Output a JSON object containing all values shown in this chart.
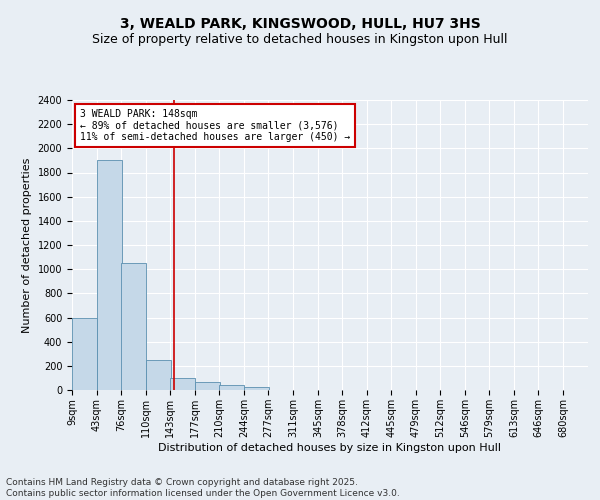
{
  "title": "3, WEALD PARK, KINGSWOOD, HULL, HU7 3HS",
  "subtitle": "Size of property relative to detached houses in Kingston upon Hull",
  "xlabel": "Distribution of detached houses by size in Kingston upon Hull",
  "ylabel": "Number of detached properties",
  "footnote1": "Contains HM Land Registry data © Crown copyright and database right 2025.",
  "footnote2": "Contains public sector information licensed under the Open Government Licence v3.0.",
  "bin_labels": [
    "9sqm",
    "43sqm",
    "76sqm",
    "110sqm",
    "143sqm",
    "177sqm",
    "210sqm",
    "244sqm",
    "277sqm",
    "311sqm",
    "345sqm",
    "378sqm",
    "412sqm",
    "445sqm",
    "479sqm",
    "512sqm",
    "546sqm",
    "579sqm",
    "613sqm",
    "646sqm",
    "680sqm"
  ],
  "bin_edges": [
    9,
    43,
    76,
    110,
    143,
    177,
    210,
    244,
    277,
    311,
    345,
    378,
    412,
    445,
    479,
    512,
    546,
    579,
    613,
    646,
    680
  ],
  "bar_values": [
    600,
    1900,
    1050,
    250,
    100,
    65,
    40,
    25,
    0,
    0,
    0,
    0,
    0,
    0,
    0,
    0,
    0,
    0,
    0,
    0
  ],
  "bar_color": "#c5d8e8",
  "bar_edge_color": "#5a8fb0",
  "background_color": "#e8eef4",
  "grid_color": "#ffffff",
  "red_line_x": 148,
  "annotation_title": "3 WEALD PARK: 148sqm",
  "annotation_line1": "← 89% of detached houses are smaller (3,576)",
  "annotation_line2": "11% of semi-detached houses are larger (450) →",
  "annotation_box_color": "#ffffff",
  "annotation_box_edge": "#cc0000",
  "annotation_text_color": "#000000",
  "red_line_color": "#cc0000",
  "ylim": [
    0,
    2400
  ],
  "yticks": [
    0,
    200,
    400,
    600,
    800,
    1000,
    1200,
    1400,
    1600,
    1800,
    2000,
    2200,
    2400
  ],
  "title_fontsize": 10,
  "subtitle_fontsize": 9,
  "axis_label_fontsize": 8,
  "tick_fontsize": 7,
  "annotation_fontsize": 7,
  "footnote_fontsize": 6.5
}
